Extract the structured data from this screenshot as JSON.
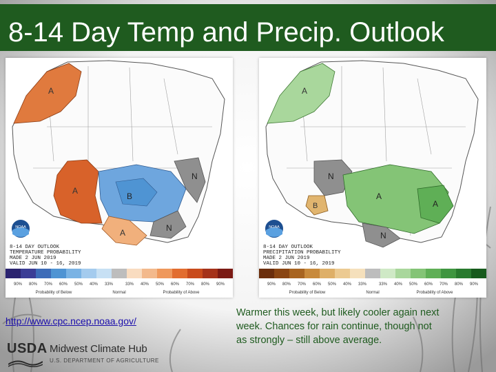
{
  "slide": {
    "title": "8-14 Day Temp and Precip. Outlook"
  },
  "colors": {
    "title_bar": "#1f5b1f",
    "text_green": "#1f5b1f",
    "link": "#1a0dab"
  },
  "temperature_map": {
    "header_lines": [
      "8-14 DAY OUTLOOK",
      "TEMPERATURE PROBABILITY",
      "MADE 2 JUN 2019",
      "VALID JUN 10 - 16, 2019"
    ],
    "agency": "NOAA",
    "scale_below": [
      "90%",
      "80%",
      "70%",
      "60%",
      "50%",
      "40%",
      "33%"
    ],
    "scale_above": [
      "33%",
      "40%",
      "50%",
      "60%",
      "70%",
      "80%",
      "90%"
    ],
    "legend_left": "Probability of Below",
    "legend_mid": "Normal",
    "legend_right": "Probability of Above",
    "colors_below": [
      "#2b2470",
      "#3b3d96",
      "#3d6cb8",
      "#4f94d3",
      "#7ab3e4",
      "#a4cbee",
      "#c7e0f4"
    ],
    "colors_above": [
      "#f9dcc0",
      "#f3b98c",
      "#ef985c",
      "#e26d2f",
      "#c94b1c",
      "#a5321a",
      "#7b1a14"
    ],
    "regions": [
      {
        "label": "A",
        "fill": "#e07a3e"
      },
      {
        "label": "A",
        "fill": "#d8622a"
      },
      {
        "label": "B",
        "fill": "#6ea6de"
      },
      {
        "label": "N",
        "fill": "#8f8f8f"
      },
      {
        "label": "N",
        "fill": "#8f8f8f"
      },
      {
        "label": "A",
        "fill": "#f1b07c"
      }
    ]
  },
  "precip_map": {
    "header_lines": [
      "8-14 DAY OUTLOOK",
      "PRECIPITATION PROBABILITY",
      "MADE 2 JUN 2019",
      "VALID JUN 10 - 16, 2019"
    ],
    "agency": "NOAA",
    "scale_below": [
      "90%",
      "80%",
      "70%",
      "60%",
      "50%",
      "40%",
      "33%"
    ],
    "scale_above": [
      "33%",
      "40%",
      "50%",
      "60%",
      "70%",
      "80%",
      "90%"
    ],
    "legend_left": "Probability of Below",
    "legend_mid": "Normal",
    "legend_right": "Probability of Above",
    "colors_below": [
      "#6b2e0c",
      "#8a4512",
      "#a86420",
      "#c88a3c",
      "#deaf68",
      "#ecca92",
      "#f5e0bc"
    ],
    "colors_above": [
      "#cfe9c6",
      "#a9d79c",
      "#84c476",
      "#5faf56",
      "#3f9640",
      "#287a2e",
      "#165a1c"
    ],
    "regions": [
      {
        "label": "A",
        "fill": "#a9d79c"
      },
      {
        "label": "N",
        "fill": "#8f8f8f"
      },
      {
        "label": "B",
        "fill": "#e1b56f"
      },
      {
        "label": "A",
        "fill": "#84c476"
      },
      {
        "label": "A",
        "fill": "#5faf56"
      },
      {
        "label": "N",
        "fill": "#8f8f8f"
      }
    ]
  },
  "footer": {
    "url": "http://www.cpc.ncep.noaa.gov/",
    "caption": "Warmer this week, but likely cooler again next week.  Chances for rain continue, though not as strongly – still above average.",
    "usda_word": "USDA",
    "hub_name": "Midwest Climate Hub",
    "department": "U.S. DEPARTMENT OF AGRICULTURE"
  }
}
